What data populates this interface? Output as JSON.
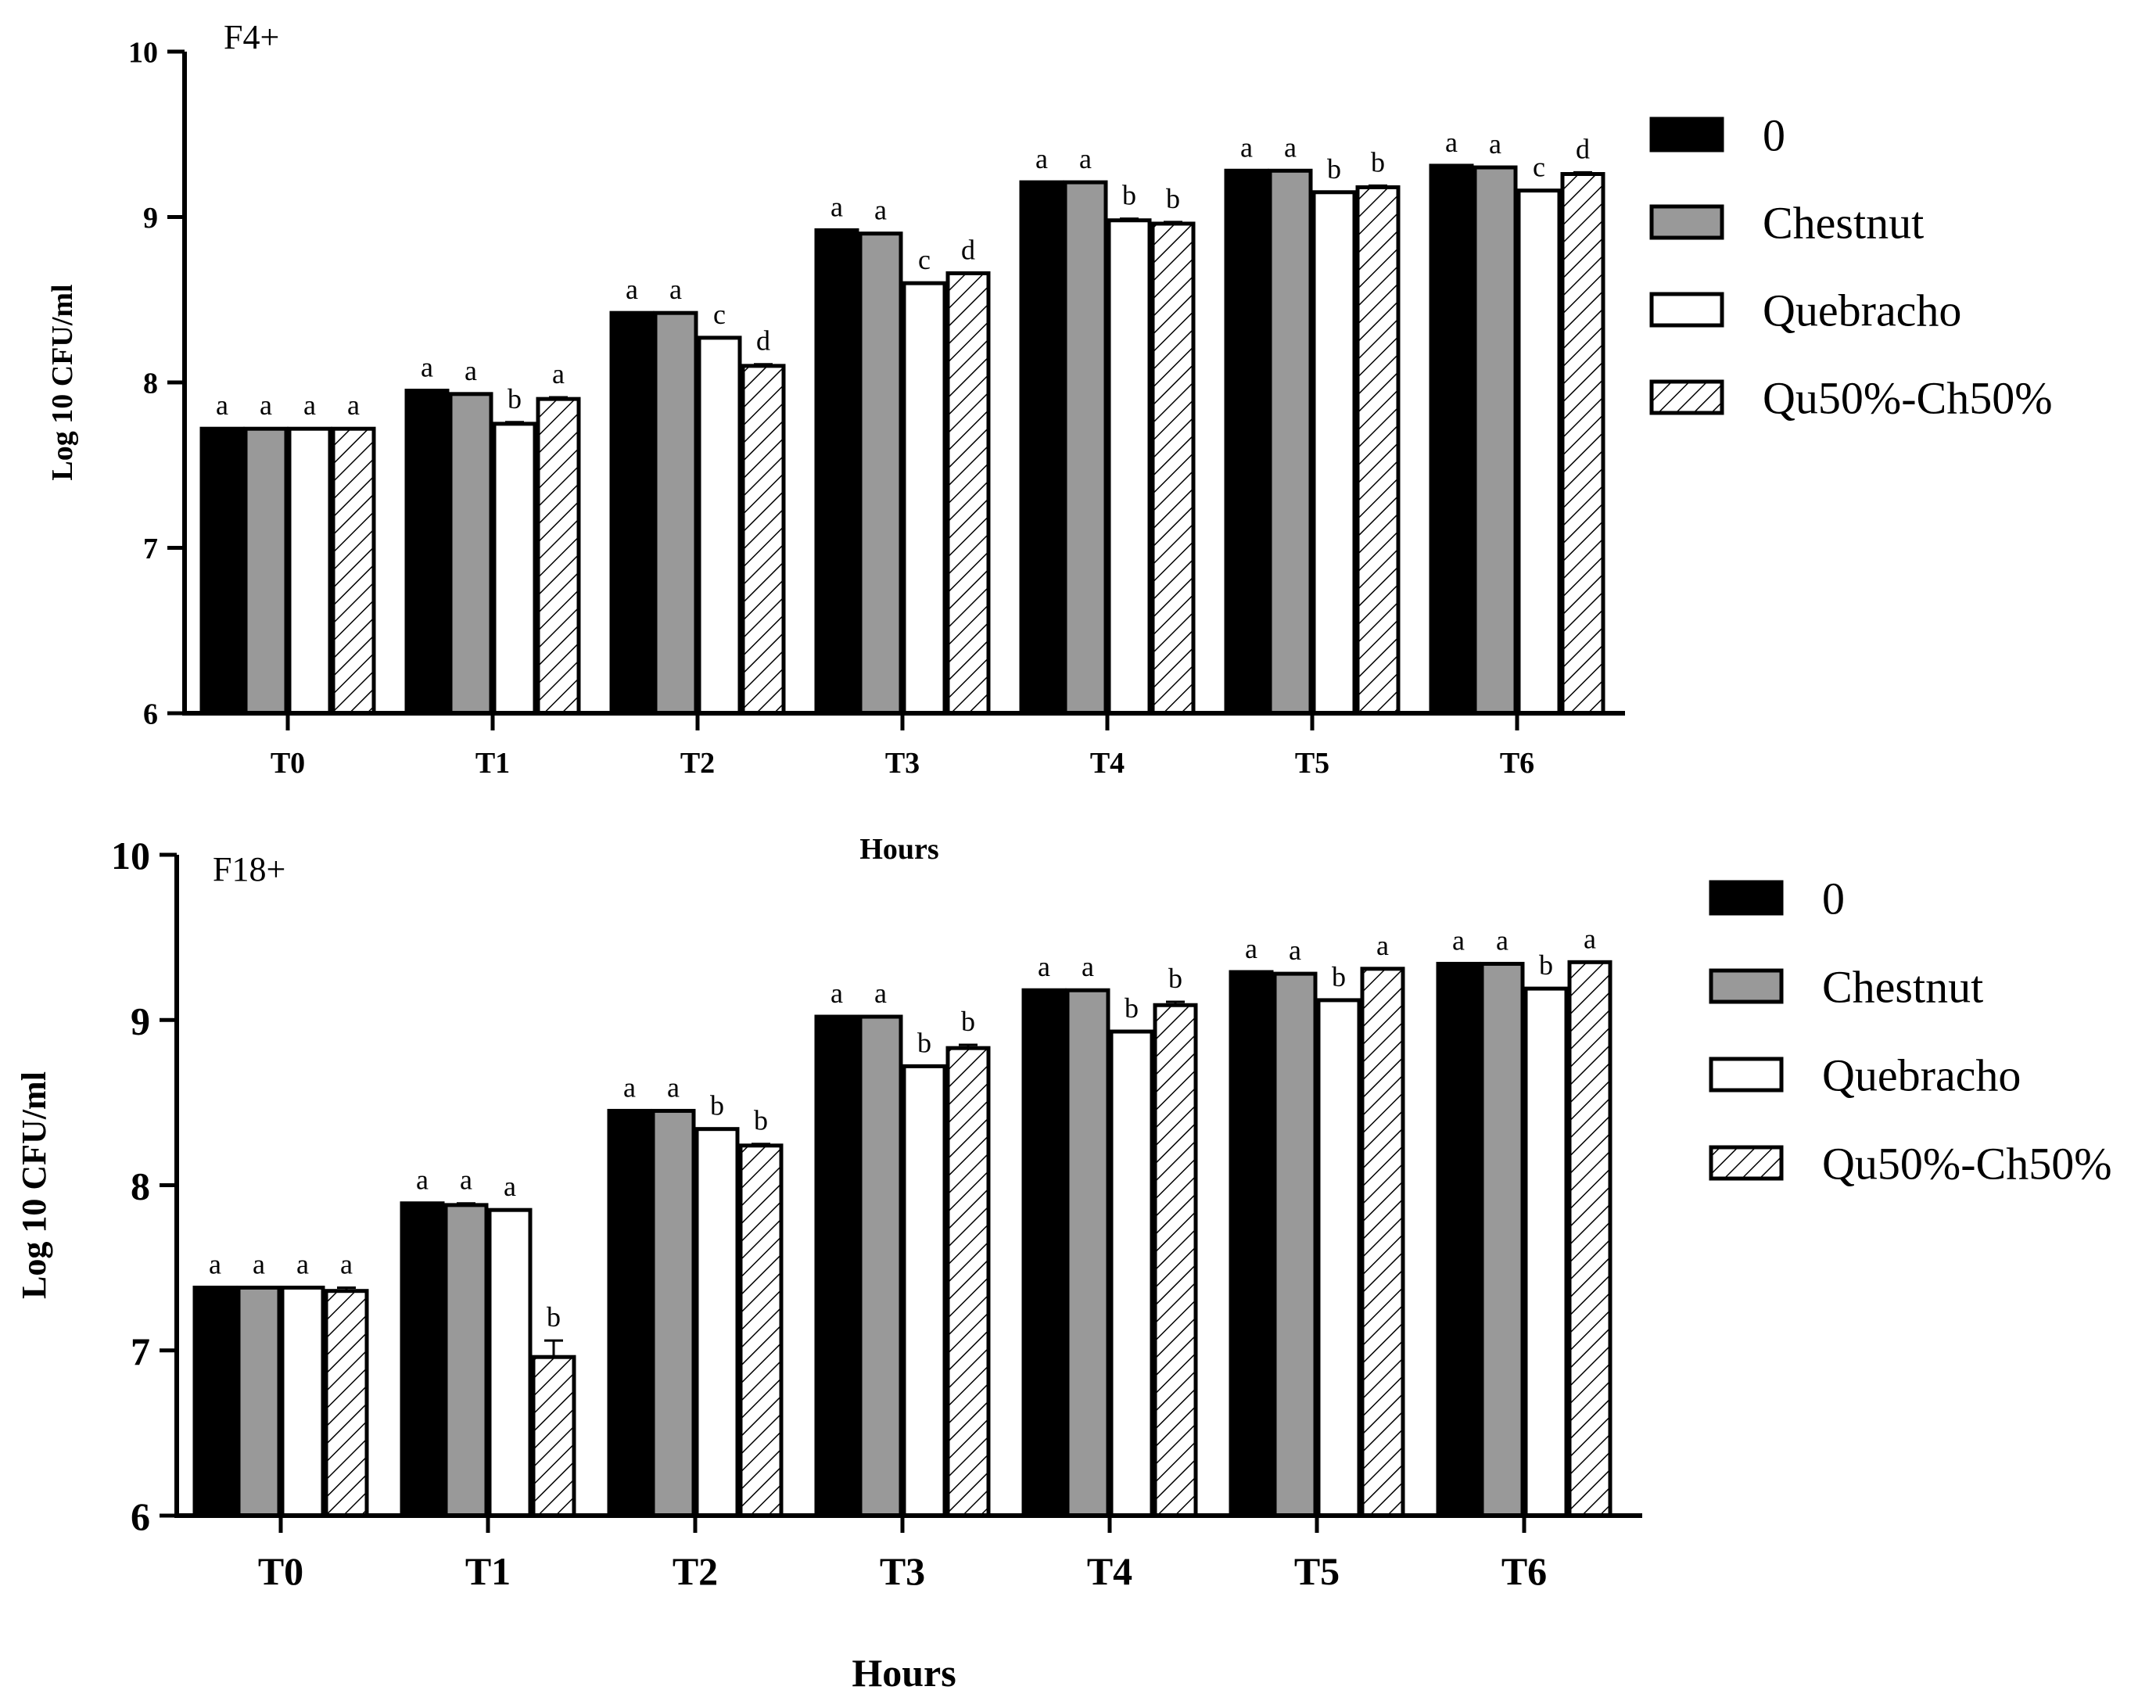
{
  "figure": {
    "colors": {
      "0": "#000000",
      "Chestnut": "#999999",
      "Quebracho": "#ffffff",
      "Qu50%-Ch50%": "hatch"
    }
  },
  "chart_data": [
    {
      "type": "bar",
      "title": "F4+",
      "xlabel": "Hours",
      "ylabel": "Log 10 CFU/ml",
      "ylim": [
        6,
        10
      ],
      "yticks": [
        6,
        7,
        8,
        9,
        10
      ],
      "categories": [
        "T0",
        "T1",
        "T2",
        "T3",
        "T4",
        "T5",
        "T6"
      ],
      "legend_position": "right",
      "series": [
        {
          "name": "0",
          "fill": "solid-black",
          "values": [
            7.72,
            7.95,
            8.42,
            8.92,
            9.21,
            9.28,
            9.31
          ],
          "errors": [
            0,
            0,
            0,
            0,
            0,
            0,
            0
          ],
          "letters": [
            "a",
            "a",
            "a",
            "a",
            "a",
            "a",
            "a"
          ]
        },
        {
          "name": "Chestnut",
          "fill": "gray",
          "values": [
            7.72,
            7.93,
            8.42,
            8.9,
            9.21,
            9.28,
            9.3
          ],
          "errors": [
            0,
            0,
            0,
            0,
            0,
            0,
            0
          ],
          "letters": [
            "a",
            "a",
            "a",
            "a",
            "a",
            "a",
            "a"
          ]
        },
        {
          "name": "Quebracho",
          "fill": "white",
          "values": [
            7.72,
            7.75,
            8.27,
            8.6,
            8.98,
            9.15,
            9.16
          ],
          "errors": [
            0,
            0.01,
            0,
            0,
            0.01,
            0,
            0
          ],
          "letters": [
            "a",
            "b",
            "c",
            "c",
            "b",
            "b",
            "c"
          ]
        },
        {
          "name": "Qu50%-Ch50%",
          "fill": "hatch",
          "values": [
            7.72,
            7.9,
            8.1,
            8.66,
            8.96,
            9.18,
            9.26
          ],
          "errors": [
            0,
            0.01,
            0.01,
            0,
            0.01,
            0.01,
            0.01
          ],
          "letters": [
            "a",
            "a",
            "d",
            "d",
            "b",
            "b",
            "d"
          ]
        }
      ]
    },
    {
      "type": "bar",
      "title": "F18+",
      "xlabel": "Hours",
      "ylabel": "Log 10 CFU/ml",
      "ylim": [
        6,
        10
      ],
      "yticks": [
        6,
        7,
        8,
        9,
        10
      ],
      "categories": [
        "T0",
        "T1",
        "T2",
        "T3",
        "T4",
        "T5",
        "T6"
      ],
      "legend_position": "right",
      "series": [
        {
          "name": "0",
          "fill": "solid-black",
          "values": [
            7.38,
            7.89,
            8.45,
            9.02,
            9.18,
            9.29,
            9.34
          ],
          "errors": [
            0,
            0,
            0,
            0,
            0,
            0,
            0
          ],
          "letters": [
            "a",
            "a",
            "a",
            "a",
            "a",
            "a",
            "a"
          ]
        },
        {
          "name": "Chestnut",
          "fill": "gray",
          "values": [
            7.38,
            7.88,
            8.45,
            9.02,
            9.18,
            9.28,
            9.34
          ],
          "errors": [
            0,
            0.01,
            0,
            0,
            0,
            0,
            0
          ],
          "letters": [
            "a",
            "a",
            "a",
            "a",
            "a",
            "a",
            "a"
          ]
        },
        {
          "name": "Quebracho",
          "fill": "white",
          "values": [
            7.38,
            7.85,
            8.34,
            8.72,
            8.93,
            9.12,
            9.19
          ],
          "errors": [
            0,
            0,
            0,
            0,
            0,
            0,
            0
          ],
          "letters": [
            "a",
            "a",
            "b",
            "b",
            "b",
            "b",
            "b"
          ]
        },
        {
          "name": "Qu50%-Ch50%",
          "fill": "hatch",
          "values": [
            7.36,
            6.96,
            8.24,
            8.83,
            9.09,
            9.31,
            9.35
          ],
          "errors": [
            0.02,
            0.1,
            0.01,
            0.02,
            0.02,
            0,
            0
          ],
          "letters": [
            "a",
            "b",
            "b",
            "b",
            "b",
            "a",
            "a"
          ]
        }
      ]
    }
  ]
}
